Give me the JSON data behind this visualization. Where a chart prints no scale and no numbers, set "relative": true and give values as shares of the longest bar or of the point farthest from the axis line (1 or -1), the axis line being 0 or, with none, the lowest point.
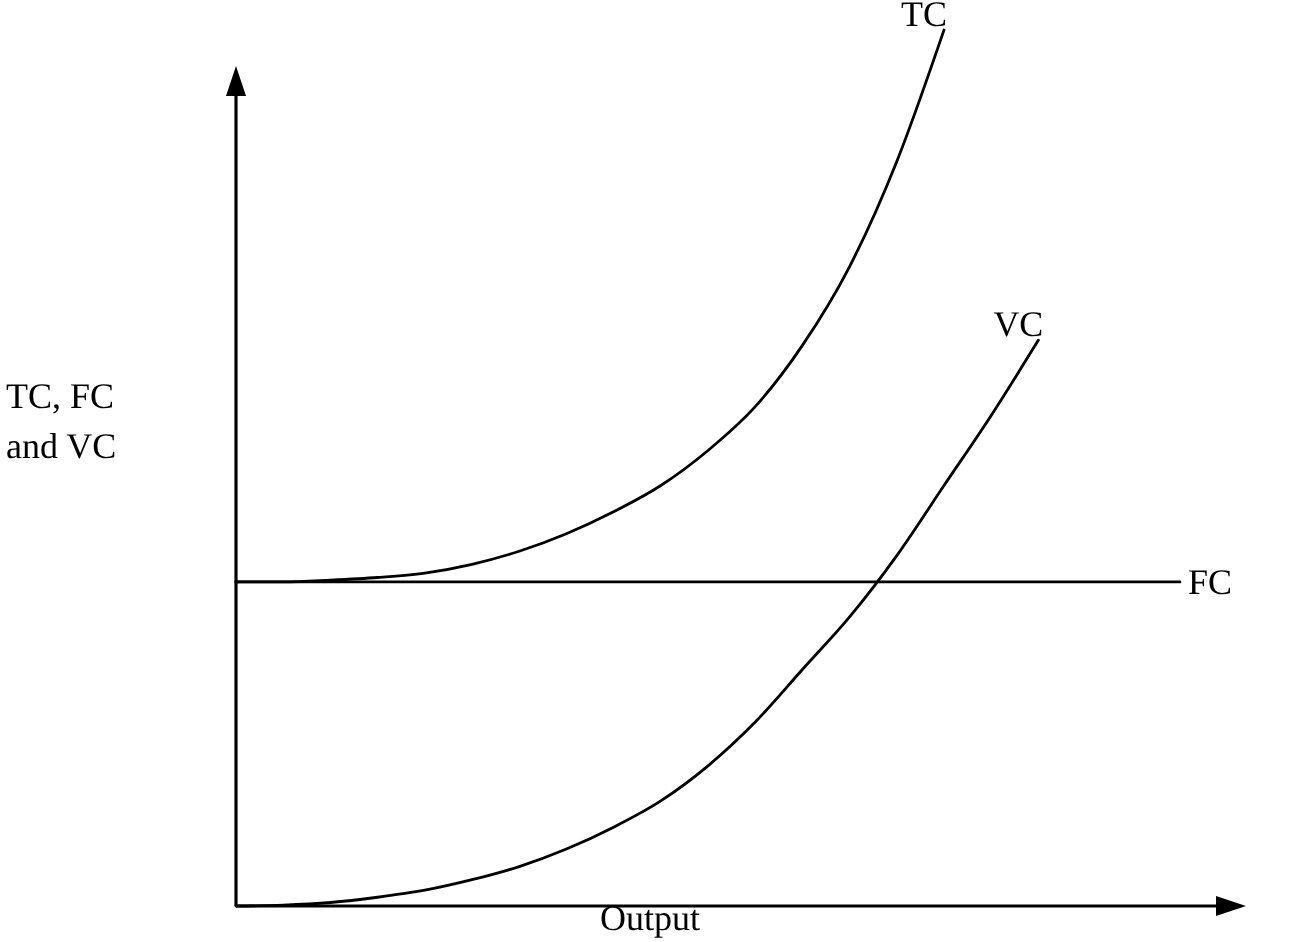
{
  "chart_data": {
    "type": "line",
    "xlabel": "Output",
    "ylabel": "TC, FC and VC",
    "relative": true,
    "categories": [
      null,
      null,
      null,
      null,
      null,
      null,
      null,
      null,
      null,
      null,
      null,
      null,
      null,
      null,
      null,
      null,
      null,
      null,
      null,
      null,
      null
    ],
    "series": [
      {
        "name": "TC",
        "color": "#000000",
        "values": [
          0.37,
          0.37,
          0.372,
          0.375,
          0.38,
          0.39,
          0.405,
          0.425,
          0.45,
          0.48,
          0.52,
          0.57,
          0.64,
          0.73,
          0.85,
          1.0,
          null,
          null,
          null,
          null,
          null
        ]
      },
      {
        "name": "VC",
        "color": "#000000",
        "values": [
          0,
          0.001,
          0.004,
          0.01,
          0.018,
          0.03,
          0.045,
          0.065,
          0.09,
          0.12,
          0.16,
          0.21,
          0.27,
          0.33,
          0.4,
          0.48,
          0.56,
          0.646,
          null,
          null,
          null
        ]
      },
      {
        "name": "FC",
        "color": "#000000",
        "values": [
          0.37,
          0.37,
          0.37,
          0.37,
          0.37,
          0.37,
          0.37,
          0.37,
          0.37,
          0.37,
          0.37,
          0.37,
          0.37,
          0.37,
          0.37,
          0.37,
          0.37,
          0.37,
          0.37,
          0.37,
          0.37
        ]
      }
    ]
  }
}
